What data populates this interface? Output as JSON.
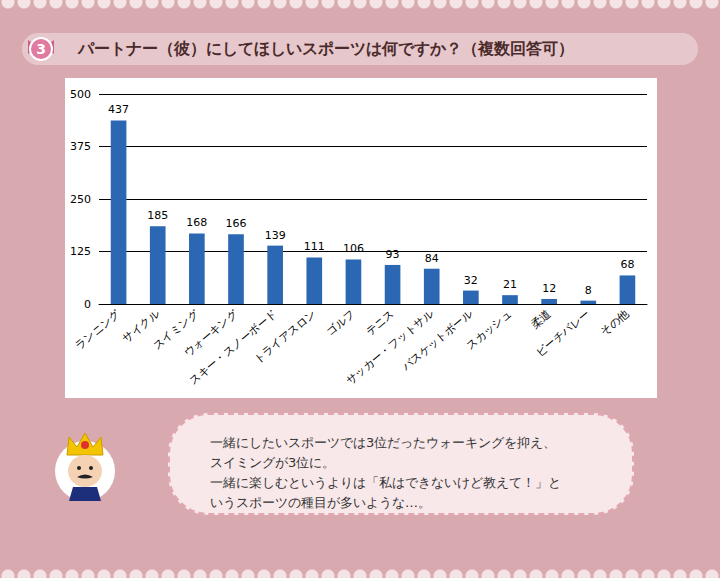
{
  "badge": "3",
  "header": "パートナー（彼）にしてほしいスポーツは何ですか？（複数回答可）",
  "comment": [
    "一緒にしたいスポーツでは3位だったウォーキングを抑え、",
    "スイミングが3位に。",
    "一緒に楽しむというよりは「私はできないけど教えて！」と",
    "いうスポーツの種目が多いような…。"
  ],
  "chart_data": {
    "type": "bar",
    "categories": [
      "ランニング",
      "サイクル",
      "スイミング",
      "ウォーキング",
      "スキー・スノーボード",
      "トライアスロン",
      "ゴルフ",
      "テニス",
      "サッカー・フットサル",
      "バスケットボール",
      "スカッシュ",
      "柔道",
      "ビーチバレー",
      "その他"
    ],
    "values": [
      437,
      185,
      168,
      166,
      139,
      111,
      106,
      93,
      84,
      32,
      21,
      12,
      8,
      68
    ],
    "color": "#2b67b2",
    "ylim": [
      0,
      500
    ],
    "yticks": [
      0,
      125,
      250,
      375,
      500
    ],
    "grid": true,
    "data_labels": true
  }
}
